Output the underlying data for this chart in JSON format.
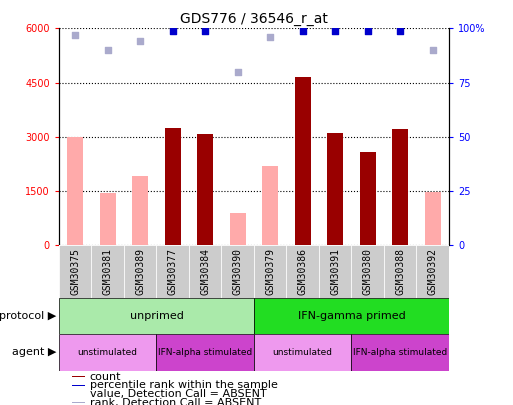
{
  "title": "GDS776 / 36546_r_at",
  "samples": [
    "GSM30375",
    "GSM30381",
    "GSM30389",
    "GSM30377",
    "GSM30384",
    "GSM30390",
    "GSM30379",
    "GSM30386",
    "GSM30391",
    "GSM30380",
    "GSM30388",
    "GSM30392"
  ],
  "count_values": [
    0,
    0,
    0,
    3250,
    3080,
    0,
    0,
    4650,
    3100,
    2580,
    3200,
    0
  ],
  "value_absent": [
    2980,
    1450,
    1900,
    0,
    0,
    900,
    2200,
    0,
    0,
    0,
    0,
    1480
  ],
  "percentile_dark": [
    99,
    99,
    99,
    99,
    99,
    83,
    99,
    99,
    99,
    99,
    99,
    92
  ],
  "percentile_light": [
    97,
    90,
    94,
    99,
    99,
    80,
    96,
    99,
    96,
    96,
    96,
    90
  ],
  "is_absent": [
    true,
    true,
    true,
    false,
    false,
    true,
    true,
    false,
    false,
    false,
    false,
    true
  ],
  "protocol_groups": [
    {
      "label": "unprimed",
      "start": 0,
      "end": 6,
      "color": "#AAEAAA"
    },
    {
      "label": "IFN-gamma primed",
      "start": 6,
      "end": 12,
      "color": "#22DD22"
    }
  ],
  "agent_groups": [
    {
      "label": "unstimulated",
      "start": 0,
      "end": 3,
      "color": "#EE99EE"
    },
    {
      "label": "IFN-alpha stimulated",
      "start": 3,
      "end": 6,
      "color": "#CC44CC"
    },
    {
      "label": "unstimulated",
      "start": 6,
      "end": 9,
      "color": "#EE99EE"
    },
    {
      "label": "IFN-alpha stimulated",
      "start": 9,
      "end": 12,
      "color": "#CC44CC"
    }
  ],
  "ylim_left": [
    0,
    6000
  ],
  "ylim_right": [
    0,
    100
  ],
  "yticks_left": [
    0,
    1500,
    3000,
    4500,
    6000
  ],
  "yticks_right": [
    0,
    25,
    50,
    75,
    100
  ],
  "color_count": "#990000",
  "color_absent_value": "#FFAAAA",
  "color_percentile_dark": "#0000CC",
  "color_percentile_light": "#AAAACC",
  "title_fontsize": 10,
  "tick_fontsize": 7,
  "label_fontsize": 8,
  "legend_fontsize": 8,
  "sample_bg_color": "#CCCCCC",
  "sample_line_color": "#999999"
}
